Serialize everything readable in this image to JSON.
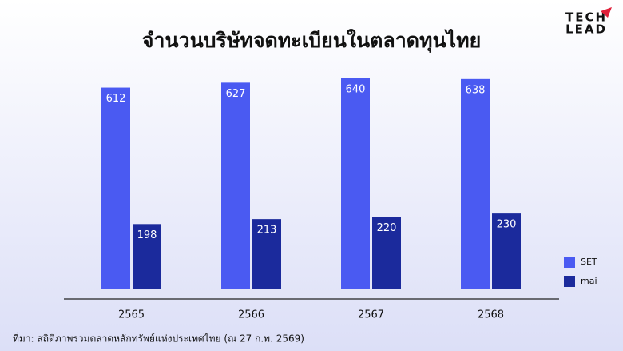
{
  "chart_data": {
    "type": "bar",
    "title": "จำนวนบริษัทจดทะเบียนในตลาดทุนไทย",
    "source": "ที่มา: สถิติภาพรวมตลาดหลักทรัพย์แห่งประเทศไทย (ณ 27 ก.พ. 2569)",
    "categories": [
      "2565",
      "2566",
      "2567",
      "2568"
    ],
    "series": [
      {
        "name": "SET",
        "color": "#4a5af2",
        "values": [
          612,
          627,
          640,
          638
        ]
      },
      {
        "name": "mai",
        "color": "#1b2a9c",
        "values": [
          198,
          213,
          220,
          230
        ]
      }
    ],
    "legend": "right"
  },
  "logo": {
    "line1": "TECH",
    "line2": "LEAD"
  }
}
